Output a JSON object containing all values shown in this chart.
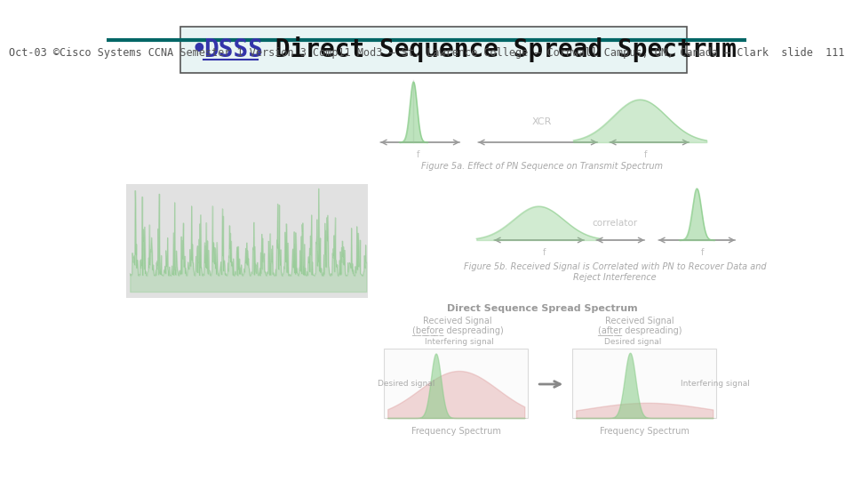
{
  "bg_color": "#ffffff",
  "title_box_bg": "#e8f4f4",
  "title_box_border": "#555555",
  "title_bullet": "•",
  "title_dsss_text": "DSSS",
  "title_dsss_color": "#3333aa",
  "title_rest_text": " Direct Sequence Spread Spectrum",
  "title_rest_color": "#111111",
  "title_font_size": 20,
  "footer_line_color": "#006666",
  "footer_text": "Oct-03 ©Cisco Systems CCNA Semester 1 Version 3 Comp11 Mod3 – St. Lawrence College – Cornwall Campus, ON, Canada – Clark  slide  111",
  "footer_text_color": "#555555",
  "footer_font_size": 8.5,
  "fig5a_caption": "Figure 5a. Effect of PN Sequence on Transmit Spectrum",
  "fig5b_caption": "Figure 5b. Received Signal is Correlated with PN to Recover Data and\nReject Interference",
  "dsss_label": "Direct Sequence Spread Spectrum",
  "freq_spectrum": "Frequency Spectrum",
  "interfering_signal": "Interfering signal",
  "desired_signal": "Desired signal",
  "correlator_label": "correlator",
  "xcr_label": "XCR",
  "green_color": "#88cc88",
  "green_dark": "#44aa44",
  "red_color": "#dd9999",
  "arrow_color": "#999999"
}
